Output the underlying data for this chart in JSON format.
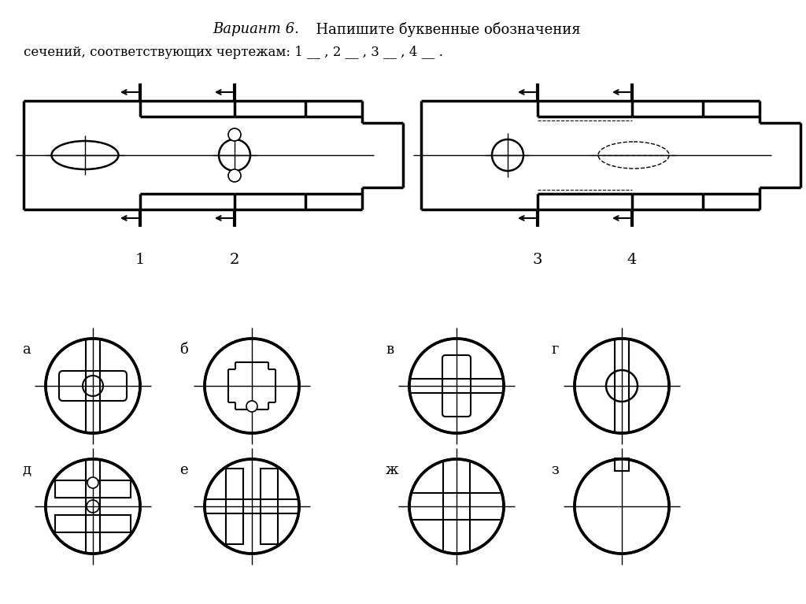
{
  "title_italic": "Вариант 6.",
  "title_normal": "  Напишите буквенные обозначения",
  "title_line2": "сечений, соответствующих чертежам: 1 __ , 2 __ , 3 __ , 4 __ .",
  "labels_section": [
    "а",
    "б",
    "в",
    "г",
    "д",
    "е",
    "ж",
    "з"
  ],
  "bg_color": "#ffffff",
  "line_color": "#000000",
  "figure_width": 10.24,
  "figure_height": 7.67
}
